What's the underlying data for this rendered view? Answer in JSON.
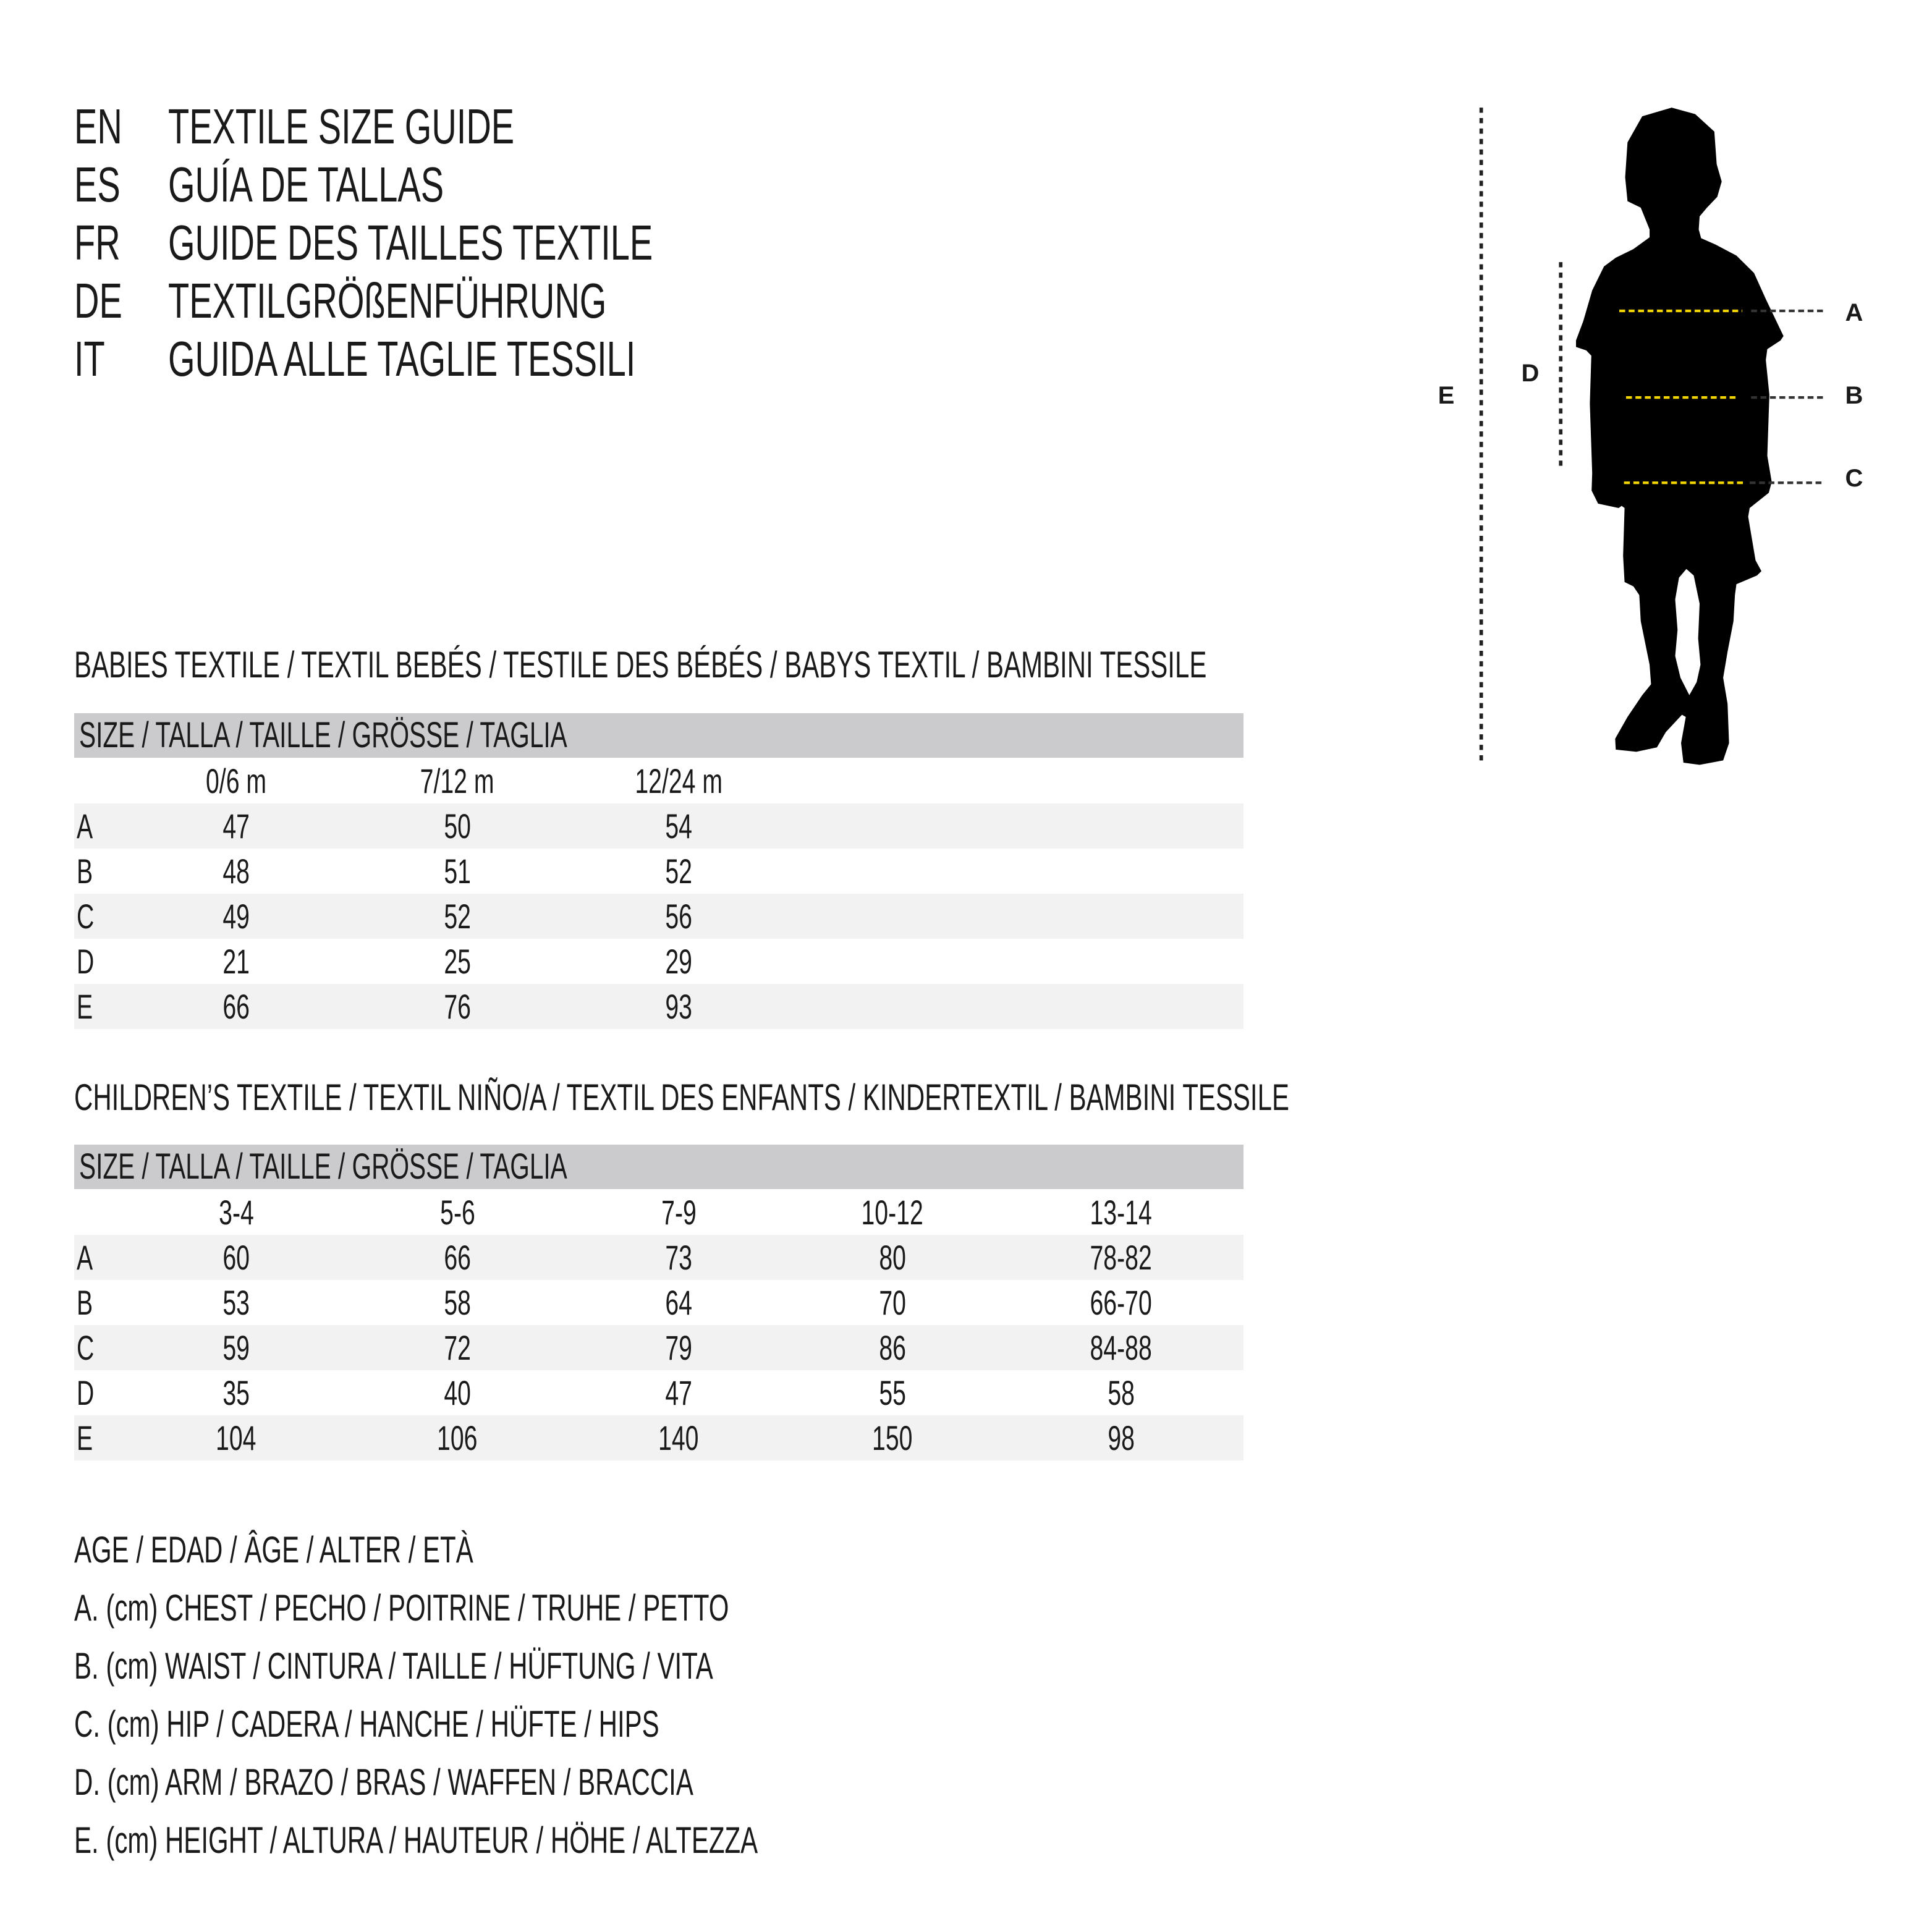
{
  "titles": [
    {
      "code": "EN",
      "text": "TEXTILE SIZE GUIDE"
    },
    {
      "code": "ES",
      "text": "GUÍA DE TALLAS"
    },
    {
      "code": "FR",
      "text": "GUIDE DES TAILLES TEXTILE"
    },
    {
      "code": "DE",
      "text": "TEXTILGRÖßENFÜHRUNG"
    },
    {
      "code": "IT",
      "text": "GUIDA ALLE TAGLIE TESSILI"
    }
  ],
  "figure": {
    "labels": {
      "A": "A",
      "B": "B",
      "C": "C",
      "D": "D",
      "E": "E"
    },
    "icon": "child-silhouette",
    "measure_line_color": "#f2d500"
  },
  "babies": {
    "heading": "BABIES TEXTILE / TEXTIL BEBÉS / TESTILE DES BÉBÉS / BABYS TEXTIL / BAMBINI TESSILE",
    "size_header": "SIZE / TALLA / TAILLE / GRÖSSE / TAGLIA",
    "columns": [
      "0/6 m",
      "7/12 m",
      "12/24 m"
    ],
    "rows": [
      {
        "label": "A",
        "values": [
          "47",
          "50",
          "54"
        ]
      },
      {
        "label": "B",
        "values": [
          "48",
          "51",
          "52"
        ]
      },
      {
        "label": "C",
        "values": [
          "49",
          "52",
          "56"
        ]
      },
      {
        "label": "D",
        "values": [
          "21",
          "25",
          "29"
        ]
      },
      {
        "label": "E",
        "values": [
          "66",
          "76",
          "93"
        ]
      }
    ]
  },
  "children": {
    "heading": "CHILDREN’S TEXTILE / TEXTIL NIÑO/A / TEXTIL DES ENFANTS / KINDERTEXTIL / BAMBINI TESSILE",
    "size_header": "SIZE / TALLA / TAILLE / GRÖSSE / TAGLIA",
    "columns": [
      "3-4",
      "5-6",
      "7-9",
      "10-12",
      "13-14"
    ],
    "rows": [
      {
        "label": "A",
        "values": [
          "60",
          "66",
          "73",
          "80",
          "78-82"
        ]
      },
      {
        "label": "B",
        "values": [
          "53",
          "58",
          "64",
          "70",
          "66-70"
        ]
      },
      {
        "label": "C",
        "values": [
          "59",
          "72",
          "79",
          "86",
          "84-88"
        ]
      },
      {
        "label": "D",
        "values": [
          "35",
          "40",
          "47",
          "55",
          "58"
        ]
      },
      {
        "label": "E",
        "values": [
          "104",
          "106",
          "140",
          "150",
          "98"
        ]
      }
    ]
  },
  "legend": [
    "AGE / EDAD / ÂGE / ALTER / ETÀ",
    "A. (cm) CHEST / PECHO / POITRINE / TRUHE / PETTO",
    "B. (cm) WAIST / CINTURA / TAILLE / HÜFTUNG / VITA",
    "C. (cm) HIP / CADERA / HANCHE / HÜFTE / HIPS",
    "D. (cm) ARM / BRAZO / BRAS / WAFFEN / BRACCIA",
    "E. (cm) HEIGHT / ALTURA / HAUTEUR / HÖHE / ALTEZZA"
  ]
}
